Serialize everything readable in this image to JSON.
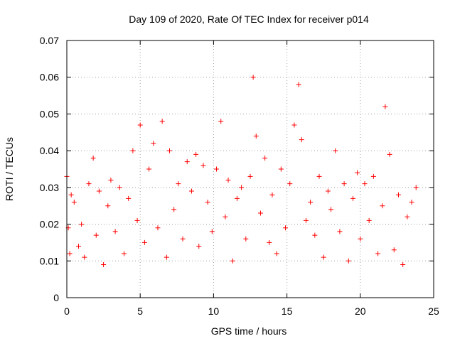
{
  "chart_data": {
    "type": "scatter",
    "title": "Day 109 of 2020, Rate Of TEC Index for receiver p014",
    "xlabel": "GPS time / hours",
    "ylabel": "ROTI / TECUs",
    "xlim": [
      0,
      25
    ],
    "ylim": [
      0,
      0.07
    ],
    "x_ticks": [
      "0",
      "5",
      "10",
      "15",
      "20",
      "25"
    ],
    "y_ticks": [
      "0",
      "0.01",
      "0.02",
      "0.03",
      "0.04",
      "0.05",
      "0.06",
      "0.07"
    ],
    "grid": true,
    "legend": "none",
    "marker": "+",
    "color": "#ff0000",
    "series": [
      {
        "x": [
          0.0,
          0.1,
          0.2,
          0.3,
          0.5,
          0.8,
          1.0,
          1.2,
          1.5,
          1.8,
          2.0,
          2.2,
          2.5,
          2.8,
          3.0,
          3.3,
          3.6,
          3.9,
          4.2,
          4.5,
          4.8,
          5.0,
          5.3,
          5.6,
          5.9,
          6.2,
          6.5,
          6.8,
          7.0,
          7.3,
          7.6,
          7.9,
          8.2,
          8.5,
          8.8,
          9.0,
          9.3,
          9.6,
          9.9,
          10.2,
          10.5,
          10.8,
          11.0,
          11.3,
          11.6,
          11.9,
          12.2,
          12.5,
          12.7,
          12.9,
          13.2,
          13.5,
          13.8,
          14.0,
          14.3,
          14.6,
          14.9,
          15.2,
          15.5,
          15.8,
          16.0,
          16.3,
          16.6,
          16.9,
          17.2,
          17.5,
          17.8,
          18.0,
          18.3,
          18.6,
          18.9,
          19.2,
          19.5,
          19.8,
          20.0,
          20.3,
          20.6,
          20.9,
          21.2,
          21.5,
          21.7,
          22.0,
          22.3,
          22.6,
          22.9,
          23.2,
          23.5,
          23.8
        ],
        "y": [
          0.033,
          0.019,
          0.012,
          0.028,
          0.026,
          0.014,
          0.02,
          0.011,
          0.031,
          0.038,
          0.017,
          0.029,
          0.009,
          0.025,
          0.032,
          0.018,
          0.03,
          0.012,
          0.027,
          0.04,
          0.021,
          0.047,
          0.015,
          0.035,
          0.042,
          0.019,
          0.048,
          0.011,
          0.04,
          0.024,
          0.031,
          0.016,
          0.037,
          0.029,
          0.039,
          0.014,
          0.036,
          0.026,
          0.018,
          0.035,
          0.048,
          0.022,
          0.032,
          0.01,
          0.027,
          0.03,
          0.016,
          0.033,
          0.06,
          0.044,
          0.023,
          0.038,
          0.015,
          0.028,
          0.012,
          0.035,
          0.019,
          0.031,
          0.047,
          0.058,
          0.043,
          0.021,
          0.026,
          0.017,
          0.033,
          0.011,
          0.029,
          0.024,
          0.04,
          0.018,
          0.031,
          0.01,
          0.027,
          0.034,
          0.016,
          0.031,
          0.021,
          0.033,
          0.012,
          0.025,
          0.052,
          0.039,
          0.013,
          0.028,
          0.009,
          0.022,
          0.026,
          0.03
        ]
      }
    ]
  }
}
